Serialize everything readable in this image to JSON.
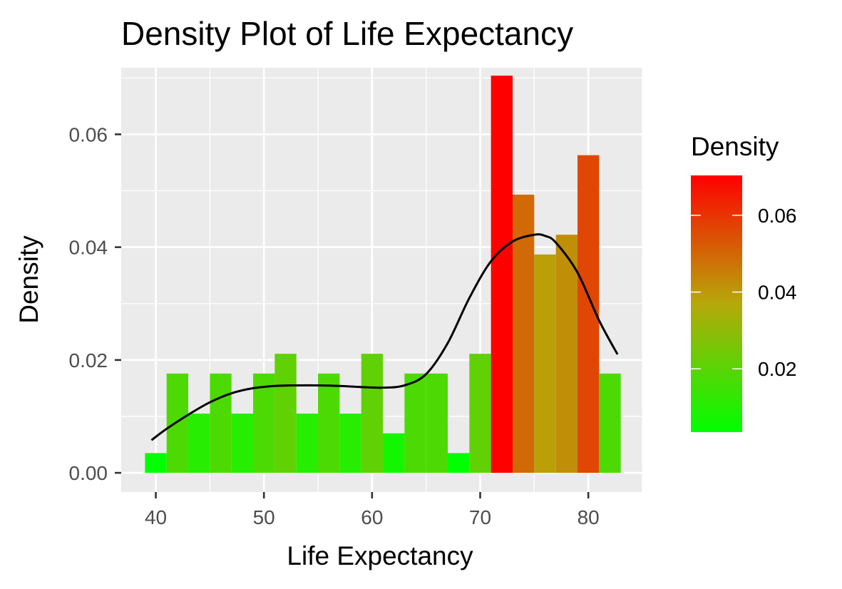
{
  "chart_data": {
    "type": "bar",
    "subtype": "histogram-with-density",
    "title": "Density Plot of Life Expectancy",
    "xlabel": "Life Expectancy",
    "ylabel": "Density",
    "xlim": [
      36.8,
      85.0
    ],
    "ylim": [
      -0.0034,
      0.0718
    ],
    "x_ticks": [
      40,
      50,
      60,
      70,
      80
    ],
    "x_tick_labels": [
      "40",
      "50",
      "60",
      "70",
      "80"
    ],
    "y_ticks": [
      0.0,
      0.02,
      0.04,
      0.06
    ],
    "y_tick_labels": [
      "0.00",
      "0.02",
      "0.04",
      "0.06"
    ],
    "grid": true,
    "bin_width": 2,
    "bins": [
      {
        "x0": 39,
        "x1": 41,
        "density": 0.0035
      },
      {
        "x0": 41,
        "x1": 43,
        "density": 0.0176
      },
      {
        "x0": 43,
        "x1": 45,
        "density": 0.0105
      },
      {
        "x0": 45,
        "x1": 47,
        "density": 0.0176
      },
      {
        "x0": 47,
        "x1": 49,
        "density": 0.0105
      },
      {
        "x0": 49,
        "x1": 51,
        "density": 0.0176
      },
      {
        "x0": 51,
        "x1": 53,
        "density": 0.0211
      },
      {
        "x0": 53,
        "x1": 55,
        "density": 0.0105
      },
      {
        "x0": 55,
        "x1": 57,
        "density": 0.0176
      },
      {
        "x0": 57,
        "x1": 59,
        "density": 0.0105
      },
      {
        "x0": 59,
        "x1": 61,
        "density": 0.0211
      },
      {
        "x0": 61,
        "x1": 63,
        "density": 0.007
      },
      {
        "x0": 63,
        "x1": 65,
        "density": 0.0176
      },
      {
        "x0": 65,
        "x1": 67,
        "density": 0.0176
      },
      {
        "x0": 67,
        "x1": 69,
        "density": 0.0035
      },
      {
        "x0": 69,
        "x1": 71,
        "density": 0.0211
      },
      {
        "x0": 71,
        "x1": 73,
        "density": 0.0704
      },
      {
        "x0": 73,
        "x1": 75,
        "density": 0.0493
      },
      {
        "x0": 75,
        "x1": 77,
        "density": 0.0387
      },
      {
        "x0": 77,
        "x1": 79,
        "density": 0.0422
      },
      {
        "x0": 79,
        "x1": 81,
        "density": 0.0563
      },
      {
        "x0": 81,
        "x1": 83,
        "density": 0.0176
      }
    ],
    "density_curve": {
      "x": [
        39.6,
        41,
        43,
        45,
        47,
        49,
        51,
        53,
        55,
        57,
        59,
        61,
        63,
        65,
        67,
        69,
        71,
        73,
        75,
        76,
        77,
        79,
        81,
        82.7
      ],
      "y": [
        0.0058,
        0.0078,
        0.0103,
        0.0125,
        0.0141,
        0.015,
        0.0154,
        0.0155,
        0.0155,
        0.0154,
        0.0152,
        0.0151,
        0.0155,
        0.0175,
        0.023,
        0.031,
        0.0375,
        0.041,
        0.0422,
        0.042,
        0.0408,
        0.0355,
        0.027,
        0.021
      ]
    },
    "legend": {
      "title": "Density",
      "position": "right",
      "range": [
        0.0035,
        0.0704
      ],
      "ticks": [
        0.02,
        0.04,
        0.06
      ],
      "tick_labels": [
        "0.02",
        "0.04",
        "0.06"
      ],
      "low_color": "#00ff00",
      "high_color": "#ff0000"
    },
    "colors": {
      "panel_background": "#ebebeb",
      "grid": "#ffffff",
      "density_line": "#000000"
    }
  }
}
